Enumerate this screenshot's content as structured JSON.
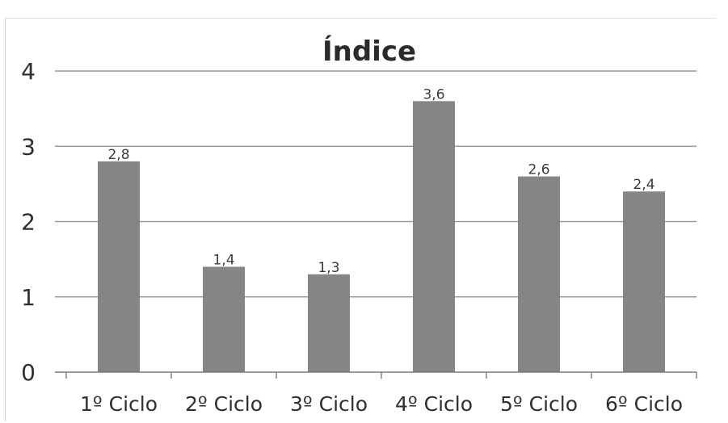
{
  "chart_data": {
    "type": "bar",
    "title": "Índice",
    "categories": [
      "1º Ciclo",
      "2º Ciclo",
      "3º Ciclo",
      "4º Ciclo",
      "5º Ciclo",
      "6º Ciclo"
    ],
    "values": [
      2.8,
      1.4,
      1.3,
      3.6,
      2.6,
      2.4
    ],
    "data_labels": [
      "2,8",
      "1,4",
      "1,3",
      "3,6",
      "2,6",
      "2,4"
    ],
    "yticks": [
      "0",
      "1",
      "2",
      "3",
      "4"
    ],
    "ylim": [
      0,
      4
    ],
    "grid": true,
    "legend": "none",
    "bar_color": "#858585"
  }
}
